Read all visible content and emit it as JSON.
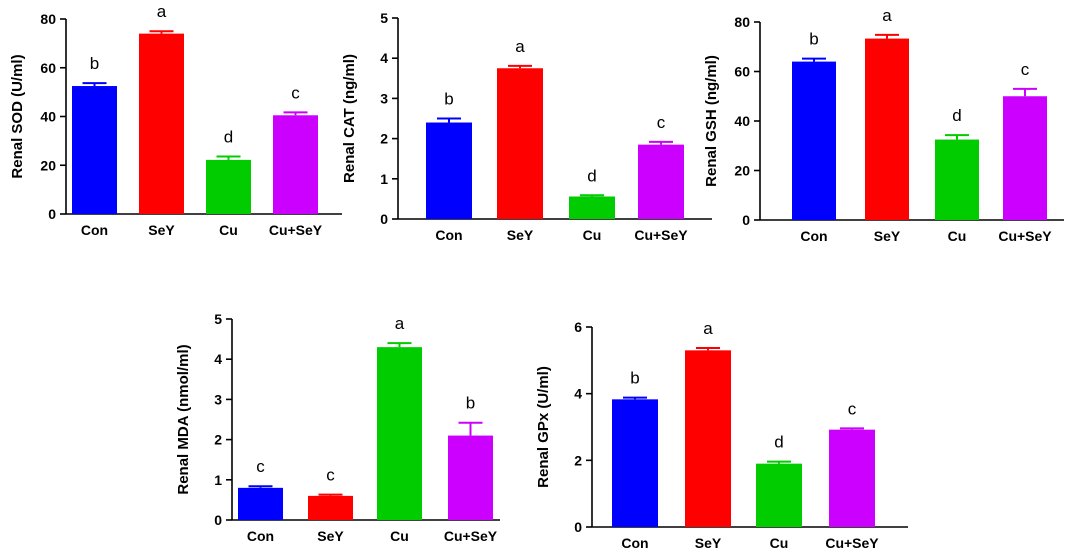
{
  "chart_data": [
    {
      "id": "sod",
      "type": "bar",
      "ylabel": "Renal SOD (U/ml)",
      "categories": [
        "Con",
        "SeY",
        "Cu",
        "Cu+SeY"
      ],
      "values": [
        52.5,
        74,
        22.2,
        40.5
      ],
      "errors": [
        1.2,
        1.0,
        1.4,
        1.2
      ],
      "letters": [
        "b",
        "a",
        "d",
        "c"
      ],
      "ylim": [
        0,
        80
      ],
      "yticks": [
        "0",
        "20",
        "40",
        "60",
        "80"
      ]
    },
    {
      "id": "cat",
      "type": "bar",
      "ylabel": "Renal CAT (ng/ml)",
      "categories": [
        "Con",
        "SeY",
        "Cu",
        "Cu+SeY"
      ],
      "values": [
        2.4,
        3.75,
        0.56,
        1.85
      ],
      "errors": [
        0.1,
        0.06,
        0.03,
        0.07
      ],
      "letters": [
        "b",
        "a",
        "d",
        "c"
      ],
      "ylim": [
        0,
        5
      ],
      "yticks": [
        "0",
        "1",
        "2",
        "3",
        "4",
        "5"
      ]
    },
    {
      "id": "gsh",
      "type": "bar",
      "ylabel": "Renal GSH (ng/ml)",
      "categories": [
        "Con",
        "SeY",
        "Cu",
        "Cu+SeY"
      ],
      "values": [
        64,
        73.3,
        32.5,
        50
      ],
      "errors": [
        1.2,
        1.5,
        1.8,
        3.0
      ],
      "letters": [
        "b",
        "a",
        "d",
        "c"
      ],
      "ylim": [
        0,
        80
      ],
      "yticks": [
        "0",
        "20",
        "40",
        "60",
        "80"
      ]
    },
    {
      "id": "mda",
      "type": "bar",
      "ylabel": "Renal MDA (nmol/ml)",
      "categories": [
        "Con",
        "SeY",
        "Cu",
        "Cu+SeY"
      ],
      "values": [
        0.8,
        0.6,
        4.3,
        2.1
      ],
      "errors": [
        0.04,
        0.03,
        0.1,
        0.32
      ],
      "letters": [
        "c",
        "c",
        "a",
        "b"
      ],
      "ylim": [
        0,
        5
      ],
      "yticks": [
        "0",
        "1",
        "2",
        "3",
        "4",
        "5"
      ]
    },
    {
      "id": "gpx",
      "type": "bar",
      "ylabel": "Renal GPx (U/ml)",
      "categories": [
        "Con",
        "SeY",
        "Cu",
        "Cu+SeY"
      ],
      "values": [
        3.83,
        5.3,
        1.9,
        2.92
      ],
      "errors": [
        0.05,
        0.07,
        0.06,
        0.04
      ],
      "letters": [
        "b",
        "a",
        "d",
        "c"
      ],
      "ylim": [
        0,
        6
      ],
      "yticks": [
        "0",
        "2",
        "4",
        "6"
      ]
    }
  ],
  "colors": [
    "#0000ff",
    "#ff0000",
    "#00cc00",
    "#cc00ff"
  ]
}
